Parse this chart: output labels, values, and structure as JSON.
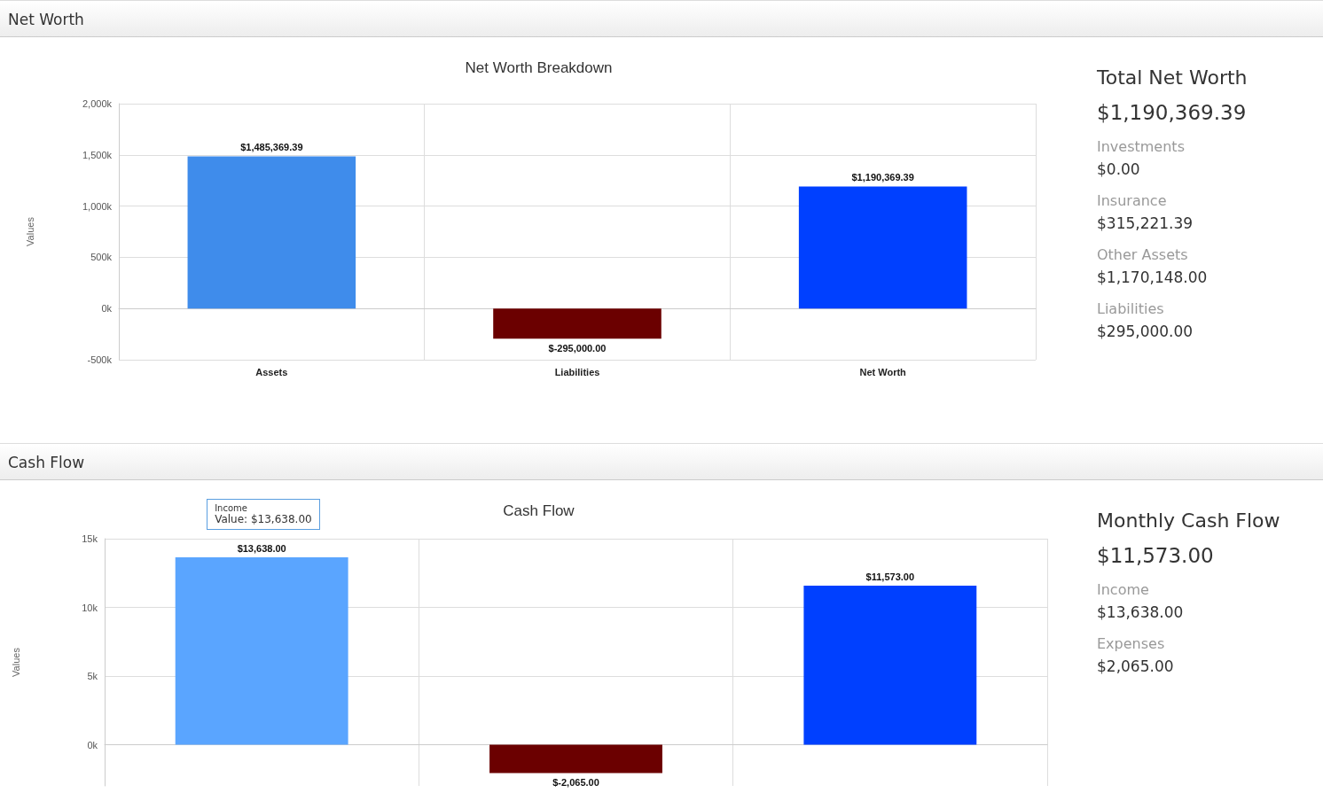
{
  "chart_data": [
    {
      "type": "bar",
      "title": "Net Worth Breakdown",
      "ylabel": "Values",
      "annotations": [
        "Net Worth"
      ],
      "categories": [
        "Assets",
        "Liabilities",
        "Net Worth"
      ],
      "values": [
        1485369.39,
        -295000,
        1190369.39
      ],
      "colors": [
        "#3f8ceb",
        "#6b0000",
        "#0040ff"
      ],
      "value_labels": [
        "$1,485,369.39",
        "$-295,000.00",
        "$1,190,369.39"
      ],
      "ylim": [
        -500000,
        2000000
      ],
      "yticks": [
        {
          "value": -500000,
          "label": "-500k"
        },
        {
          "value": 0,
          "label": "0k"
        },
        {
          "value": 500000,
          "label": "500k"
        },
        {
          "value": 1000000,
          "label": "1,000k"
        },
        {
          "value": 1500000,
          "label": "1,500k"
        },
        {
          "value": 2000000,
          "label": "2,000k"
        }
      ],
      "grid": true
    },
    {
      "type": "other",
      "title": "Total Net Worth",
      "subtitle": "$1,190,369.39",
      "annotations": [
        "Investments",
        "$0.00",
        "Insurance",
        "$315,221.39",
        "Other Assets",
        "$1,170,148.00",
        "Liabilities",
        "$295,000.00"
      ]
    },
    {
      "type": "bar",
      "title": "Cash Flow",
      "ylabel": "Values",
      "annotations": [
        "Cash Flow",
        "Income",
        "Value: $13,638.00"
      ],
      "categories": [
        null,
        null,
        null
      ],
      "values": [
        13638,
        -2065,
        11573
      ],
      "colors": [
        "#5aa5ff",
        "#6b0000",
        "#0040ff"
      ],
      "value_labels": [
        "$13,638.00",
        "$-2,065.00",
        "$11,573.00"
      ],
      "ylim": [
        -3000,
        15000
      ],
      "yticks": [
        {
          "value": 0,
          "label": "0k"
        },
        {
          "value": 5000,
          "label": "5k"
        },
        {
          "value": 10000,
          "label": "10k"
        },
        {
          "value": 15000,
          "label": "15k"
        }
      ],
      "grid": true
    },
    {
      "type": "other",
      "title": "Monthly Cash Flow",
      "subtitle": "$11,573.00",
      "annotations": [
        "Income",
        "$13,638.00",
        "Expenses",
        "$2,065.00"
      ]
    }
  ]
}
